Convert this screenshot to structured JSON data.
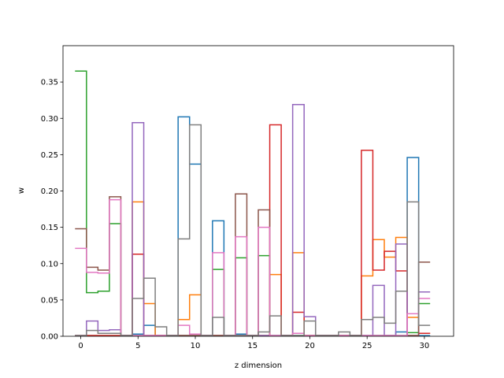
{
  "chart_data": {
    "type": "step",
    "title": "",
    "xlabel": "z dimension",
    "ylabel": "w",
    "xlim": [
      -1.55,
      32.55
    ],
    "ylim": [
      0,
      0.4
    ],
    "xticks": [
      0,
      5,
      10,
      15,
      20,
      25,
      30
    ],
    "yticks": [
      0.0,
      0.05,
      0.1,
      0.15,
      0.2,
      0.25,
      0.3,
      0.35
    ],
    "ytick_labels": [
      "0.00",
      "0.05",
      "0.10",
      "0.15",
      "0.20",
      "0.25",
      "0.30",
      "0.35"
    ],
    "grid": false,
    "legend": false,
    "series": [
      {
        "color": "#1f77b4",
        "values": [
          0.001,
          0.001,
          0.001,
          0.001,
          0.001,
          0.003,
          0.015,
          0.001,
          0.001,
          0.302,
          0.237,
          0.001,
          0.159,
          0.001,
          0.003,
          0.001,
          0.001,
          0.001,
          0.001,
          0.001,
          0.001,
          0.001,
          0.001,
          0.001,
          0.001,
          0.001,
          0.001,
          0.001,
          0.006,
          0.246,
          0.001
        ]
      },
      {
        "color": "#ff7f0e",
        "values": [
          0.001,
          0.001,
          0.001,
          0.001,
          0.001,
          0.185,
          0.045,
          0.001,
          0.001,
          0.023,
          0.057,
          0.001,
          0.001,
          0.001,
          0.001,
          0.001,
          0.001,
          0.085,
          0.001,
          0.115,
          0.001,
          0.001,
          0.001,
          0.001,
          0.001,
          0.083,
          0.133,
          0.109,
          0.136,
          0.026,
          0.004
        ]
      },
      {
        "color": "#2ca02c",
        "values": [
          0.365,
          0.06,
          0.062,
          0.155,
          0.001,
          0.001,
          0.001,
          0.001,
          0.001,
          0.001,
          0.001,
          0.001,
          0.092,
          0.001,
          0.108,
          0.001,
          0.111,
          0.001,
          0.001,
          0.001,
          0.001,
          0.001,
          0.001,
          0.001,
          0.001,
          0.001,
          0.001,
          0.001,
          0.001,
          0.005,
          0.045
        ]
      },
      {
        "color": "#d62728",
        "values": [
          0.001,
          0.001,
          0.001,
          0.001,
          0.001,
          0.113,
          0.001,
          0.001,
          0.001,
          0.001,
          0.001,
          0.001,
          0.001,
          0.001,
          0.001,
          0.001,
          0.001,
          0.291,
          0.001,
          0.033,
          0.001,
          0.001,
          0.001,
          0.001,
          0.001,
          0.256,
          0.091,
          0.117,
          0.09,
          0.001,
          0.004
        ]
      },
      {
        "color": "#9467bd",
        "values": [
          0.001,
          0.021,
          0.008,
          0.009,
          0.001,
          0.294,
          0.001,
          0.001,
          0.001,
          0.001,
          0.001,
          0.001,
          0.001,
          0.001,
          0.001,
          0.001,
          0.001,
          0.001,
          0.001,
          0.319,
          0.027,
          0.001,
          0.001,
          0.001,
          0.001,
          0.001,
          0.07,
          0.001,
          0.127,
          0.001,
          0.061
        ]
      },
      {
        "color": "#8c564b",
        "values": [
          0.148,
          0.095,
          0.091,
          0.192,
          0.001,
          0.001,
          0.001,
          0.001,
          0.001,
          0.001,
          0.001,
          0.001,
          0.001,
          0.001,
          0.196,
          0.001,
          0.174,
          0.001,
          0.001,
          0.001,
          0.001,
          0.001,
          0.001,
          0.001,
          0.001,
          0.001,
          0.001,
          0.001,
          0.001,
          0.001,
          0.102
        ]
      },
      {
        "color": "#e377c2",
        "values": [
          0.121,
          0.088,
          0.087,
          0.188,
          0.001,
          0.001,
          0.001,
          0.001,
          0.001,
          0.015,
          0.003,
          0.001,
          0.115,
          0.001,
          0.137,
          0.001,
          0.15,
          0.001,
          0.001,
          0.004,
          0.001,
          0.001,
          0.001,
          0.001,
          0.001,
          0.001,
          0.001,
          0.001,
          0.001,
          0.031,
          0.052
        ]
      },
      {
        "color": "#7f7f7f",
        "values": [
          0.001,
          0.008,
          0.004,
          0.004,
          0.001,
          0.052,
          0.08,
          0.013,
          0.001,
          0.134,
          0.291,
          0.001,
          0.026,
          0.001,
          0.001,
          0.001,
          0.006,
          0.028,
          0.001,
          0.001,
          0.021,
          0.001,
          0.001,
          0.006,
          0.001,
          0.023,
          0.026,
          0.018,
          0.062,
          0.185,
          0.015
        ]
      }
    ]
  }
}
